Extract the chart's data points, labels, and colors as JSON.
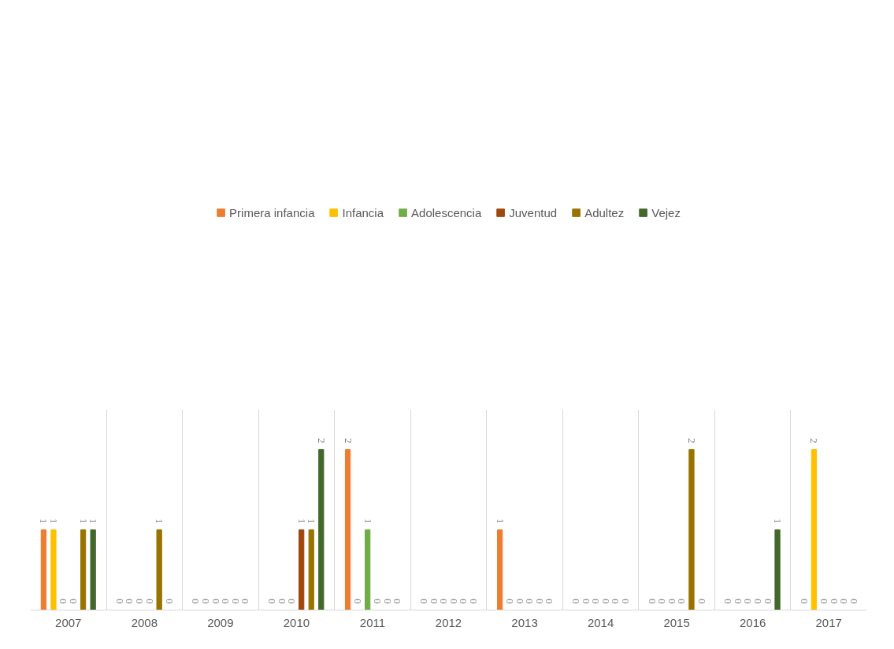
{
  "chart_data": {
    "type": "bar",
    "categories": [
      "2007",
      "2008",
      "2009",
      "2010",
      "2011",
      "2012",
      "2013",
      "2014",
      "2015",
      "2016",
      "2017"
    ],
    "series": [
      {
        "name": "Primera infancia",
        "color": "#ed7d31",
        "values": [
          1,
          0,
          0,
          0,
          2,
          0,
          1,
          0,
          0,
          0,
          0
        ]
      },
      {
        "name": "Infancia",
        "color": "#ffc000",
        "values": [
          1,
          0,
          0,
          0,
          0,
          0,
          0,
          0,
          0,
          0,
          2
        ]
      },
      {
        "name": "Adolescencia",
        "color": "#70ad47",
        "values": [
          0,
          0,
          0,
          0,
          1,
          0,
          0,
          0,
          0,
          0,
          0
        ]
      },
      {
        "name": "Juventud",
        "color": "#9e480e",
        "values": [
          0,
          0,
          0,
          1,
          0,
          0,
          0,
          0,
          0,
          0,
          0
        ]
      },
      {
        "name": "Adultez",
        "color": "#997300",
        "values": [
          1,
          1,
          0,
          1,
          0,
          0,
          0,
          0,
          2,
          0,
          0
        ]
      },
      {
        "name": "Vejez",
        "color": "#43682b",
        "values": [
          1,
          0,
          0,
          2,
          0,
          0,
          0,
          0,
          0,
          1,
          0
        ]
      }
    ],
    "ylim": [
      0,
      2.5
    ],
    "data_labels": true,
    "grid": "x",
    "legend": "top",
    "tick_labels": "x"
  }
}
